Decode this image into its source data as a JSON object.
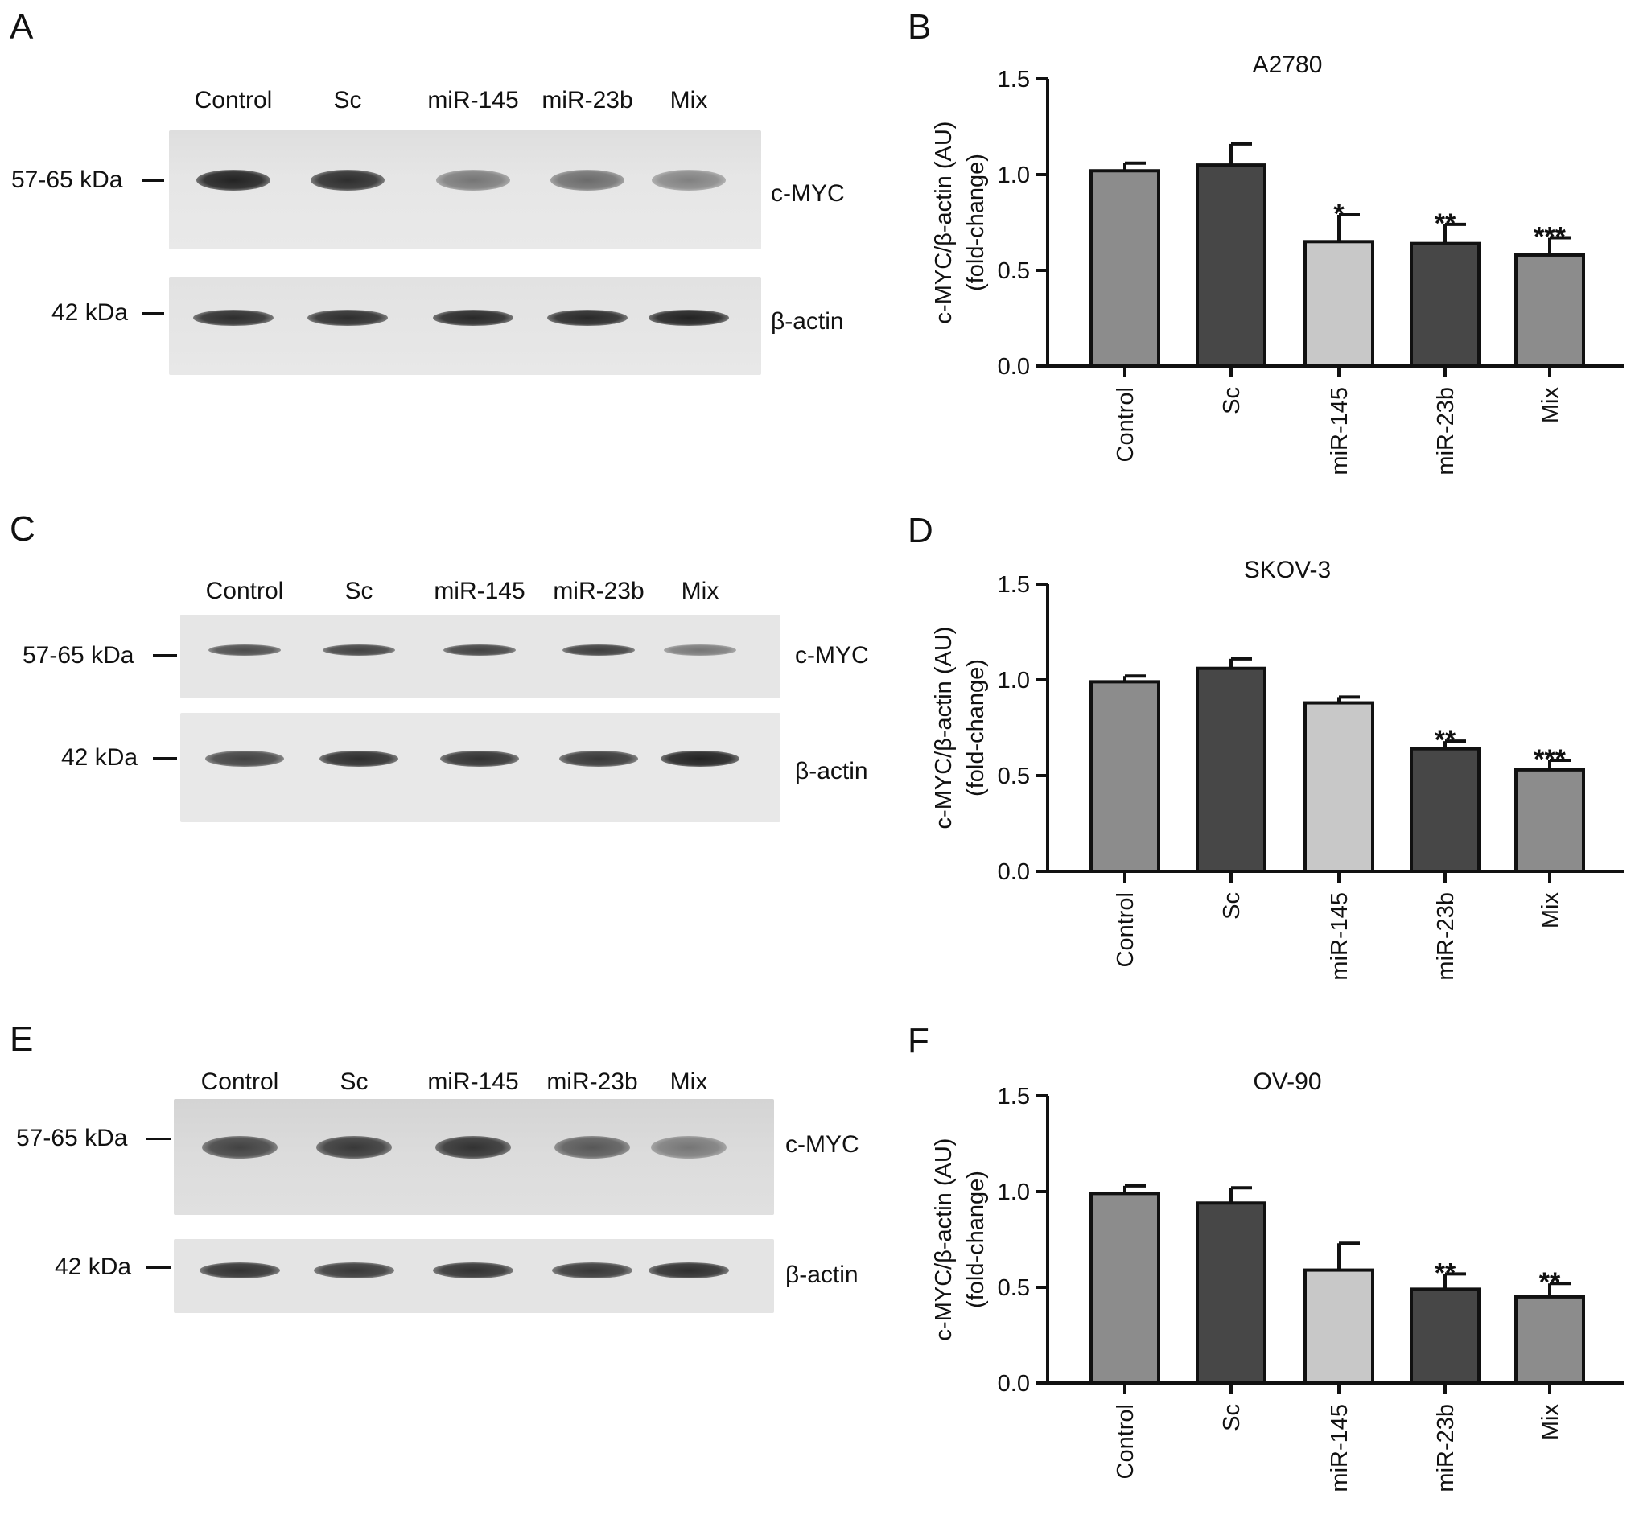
{
  "panels": {
    "a": "A",
    "b": "B",
    "c": "C",
    "d": "D",
    "e": "E",
    "f": "F"
  },
  "lanes": [
    "Control",
    "Sc",
    "miR-145",
    "miR-23b",
    "Mix"
  ],
  "blots": [
    {
      "markers": {
        "myc_kda": "57-65 kDa",
        "actin_kda": "42 kDa"
      },
      "proteins": {
        "myc": "c-MYC",
        "actin": "β-actin"
      },
      "myc_intensity": [
        0.95,
        0.9,
        0.55,
        0.6,
        0.5
      ],
      "actin_intensity": [
        0.9,
        0.9,
        0.92,
        0.92,
        0.95
      ]
    },
    {
      "markers": {
        "myc_kda": "57-65 kDa",
        "actin_kda": "42 kDa"
      },
      "proteins": {
        "myc": "c-MYC",
        "actin": "β-actin"
      },
      "myc_intensity": [
        0.75,
        0.8,
        0.8,
        0.82,
        0.55
      ],
      "actin_intensity": [
        0.8,
        0.9,
        0.88,
        0.85,
        0.95
      ]
    },
    {
      "markers": {
        "myc_kda": "57-65 kDa",
        "actin_kda": "42 kDa"
      },
      "proteins": {
        "myc": "c-MYC",
        "actin": "β-actin"
      },
      "myc_intensity": [
        0.8,
        0.85,
        0.88,
        0.7,
        0.55
      ],
      "actin_intensity": [
        0.88,
        0.85,
        0.88,
        0.85,
        0.9
      ]
    }
  ],
  "colors": {
    "control": "#8c8c8c",
    "sc": "#474747",
    "mir145": "#c8c8c8",
    "mir23b": "#474747",
    "mix": "#8c8c8c",
    "axis": "#111111"
  },
  "chart_data": [
    {
      "type": "bar",
      "title": "A2780",
      "ylabel_line1": "c-MYC/β-actin (AU)",
      "ylabel_line2": "(fold-change)",
      "categories": [
        "Control",
        "Sc",
        "miR-145",
        "miR-23b",
        "Mix"
      ],
      "values": [
        1.02,
        1.05,
        0.65,
        0.64,
        0.58
      ],
      "errors": [
        0.04,
        0.11,
        0.14,
        0.1,
        0.09
      ],
      "significance": [
        "",
        "",
        "*",
        "**",
        "***"
      ],
      "ylim": [
        0,
        1.5
      ],
      "yticks": [
        "0.0",
        "0.5",
        "1.0",
        "1.5"
      ]
    },
    {
      "type": "bar",
      "title": "SKOV-3",
      "ylabel_line1": "c-MYC/β-actin (AU)",
      "ylabel_line2": "(fold-change)",
      "categories": [
        "Control",
        "Sc",
        "miR-145",
        "miR-23b",
        "Mix"
      ],
      "values": [
        0.99,
        1.06,
        0.88,
        0.64,
        0.53
      ],
      "errors": [
        0.03,
        0.05,
        0.03,
        0.04,
        0.05
      ],
      "significance": [
        "",
        "",
        "",
        "**",
        "***"
      ],
      "ylim": [
        0,
        1.5
      ],
      "yticks": [
        "0.0",
        "0.5",
        "1.0",
        "1.5"
      ]
    },
    {
      "type": "bar",
      "title": "OV-90",
      "ylabel_line1": "c-MYC/β-actin (AU)",
      "ylabel_line2": "(fold-change)",
      "categories": [
        "Control",
        "Sc",
        "miR-145",
        "miR-23b",
        "Mix"
      ],
      "values": [
        0.99,
        0.94,
        0.59,
        0.49,
        0.45
      ],
      "errors": [
        0.04,
        0.08,
        0.14,
        0.08,
        0.07
      ],
      "significance": [
        "",
        "",
        "",
        "**",
        "**"
      ],
      "ylim": [
        0,
        1.5
      ],
      "yticks": [
        "0.0",
        "0.5",
        "1.0",
        "1.5"
      ]
    }
  ]
}
